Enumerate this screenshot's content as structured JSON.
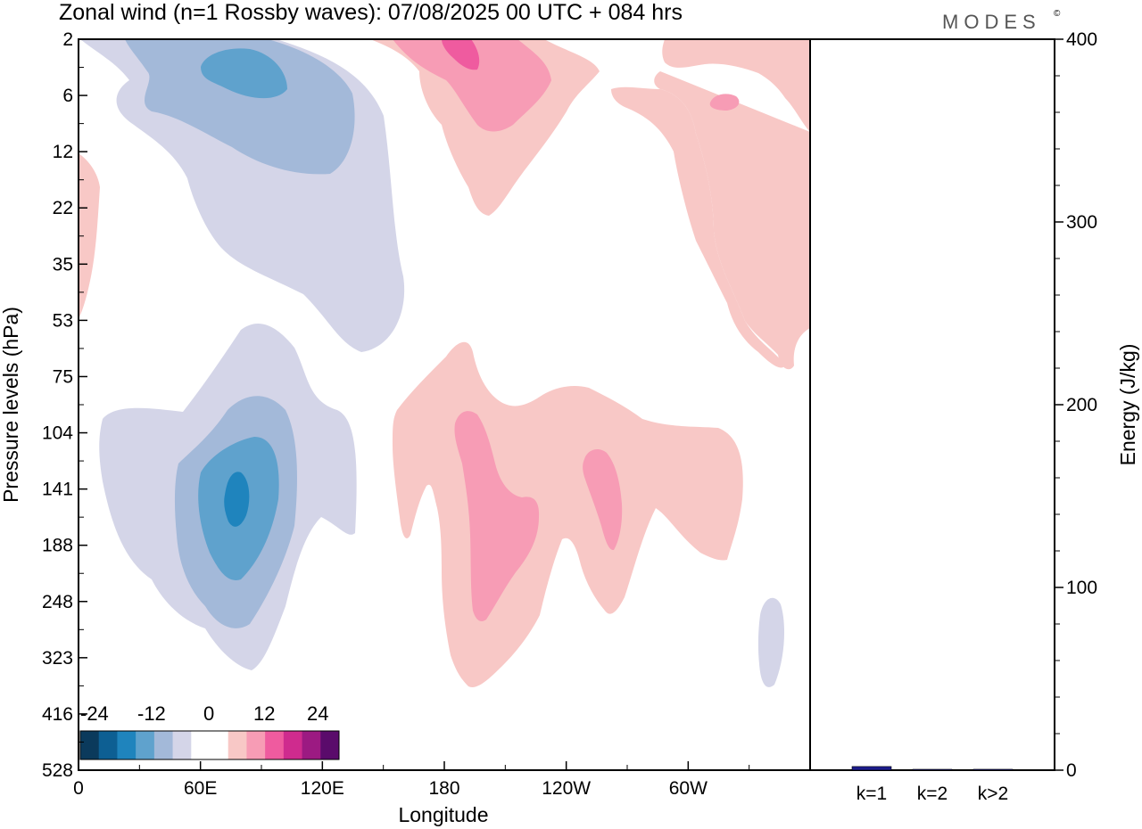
{
  "chart_data": {
    "type": "heatmap",
    "title": "Zonal wind (n=1 Rossby waves):  07/08/2025  00 UTC  + 084 hrs",
    "brand": "MODES",
    "brand_mark": "©",
    "xlabel": "Longitude",
    "ylabel": "Pressure levels (hPa)",
    "x_ticks": [
      "0",
      "60E",
      "120E",
      "180",
      "120W",
      "60W"
    ],
    "y_ticks": [
      "2",
      "6",
      "12",
      "22",
      "35",
      "53",
      "75",
      "104",
      "141",
      "188",
      "248",
      "323",
      "416",
      "528"
    ],
    "colorbar": {
      "labels": [
        "-24",
        "-12",
        "0",
        "12",
        "24"
      ],
      "colors": [
        "#0b3a5c",
        "#0d5f93",
        "#1f84bd",
        "#5fa2cd",
        "#a3b9d9",
        "#d4d5e8",
        "#ffffff",
        "#ffffff",
        "#f8c8c6",
        "#f79cb5",
        "#ef5b9f",
        "#cf2b8e",
        "#9c1a82",
        "#5a0b6b"
      ]
    },
    "energy_panel": {
      "ylabel": "Energy (J/kg)",
      "y_ticks": [
        0,
        100,
        200,
        300,
        400
      ],
      "ylim": [
        0,
        400
      ],
      "categories": [
        "k=1",
        "k=2",
        "k>2"
      ],
      "values": [
        2,
        0.3,
        0.5
      ],
      "bar_color": "#1c1c8c"
    },
    "positive_color_light": "#f8c8c6",
    "positive_color_mid": "#f79cb5",
    "positive_color_dark": "#ef5b9f",
    "negative_color_light": "#d4d5e8",
    "negative_color_mid": "#a3b9d9",
    "negative_color_dark": "#5fa2cd",
    "negative_color_core": "#1f84bd"
  }
}
